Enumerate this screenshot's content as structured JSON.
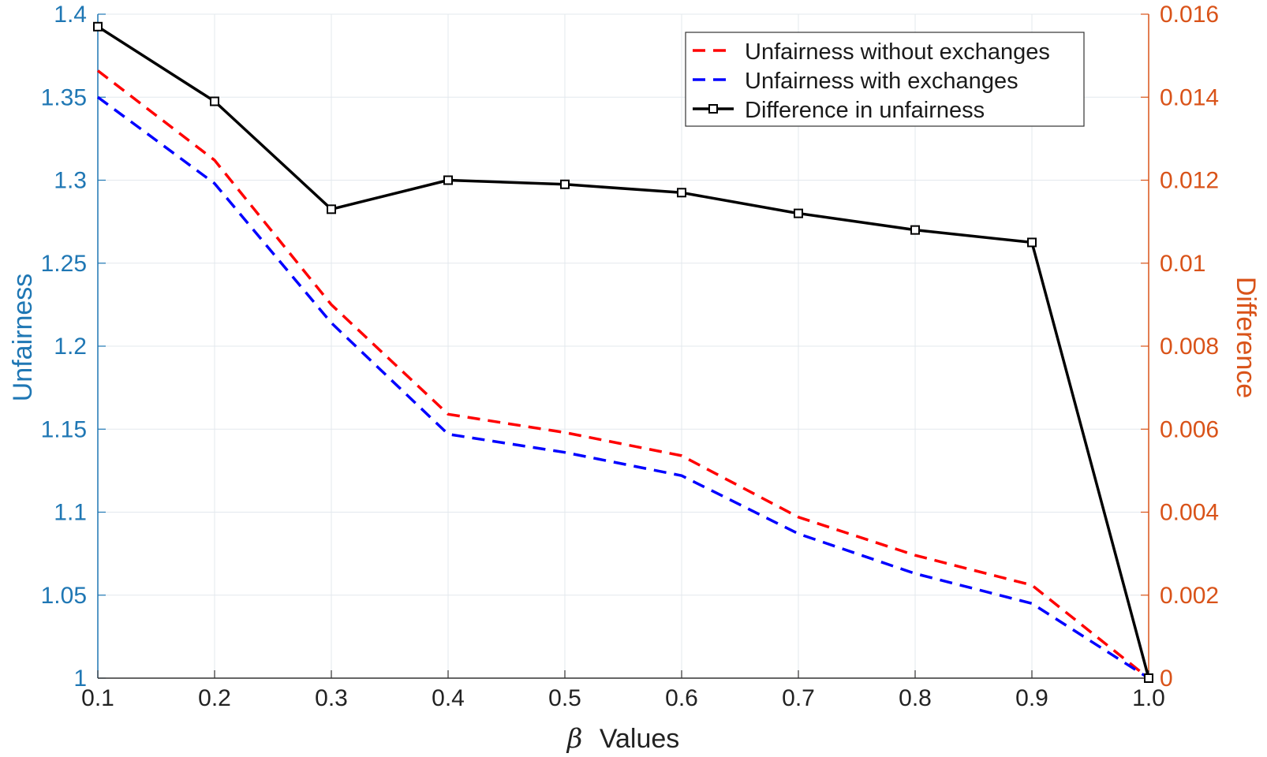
{
  "chart_data": {
    "type": "line",
    "title": "",
    "xlabel": {
      "symbol": "β",
      "text": "Values"
    },
    "ylabel_left": "Unfairness",
    "ylabel_right": "Difference",
    "x": [
      0.1,
      0.2,
      0.3,
      0.4,
      0.5,
      0.6,
      0.7,
      0.8,
      0.9,
      1.0
    ],
    "x_tick_labels": [
      "0.1",
      "0.2",
      "0.3",
      "0.4",
      "0.5",
      "0.6",
      "0.7",
      "0.8",
      "0.9",
      "1.0"
    ],
    "ylim_left": [
      1,
      1.4
    ],
    "y_left_ticks": [
      1,
      1.05,
      1.1,
      1.15,
      1.2,
      1.25,
      1.3,
      1.35,
      1.4
    ],
    "y_left_tick_labels": [
      "1",
      "1.05",
      "1.1",
      "1.15",
      "1.2",
      "1.25",
      "1.3",
      "1.35",
      "1.4"
    ],
    "ylim_right": [
      0,
      0.016
    ],
    "y_right_ticks": [
      0,
      0.002,
      0.004,
      0.006,
      0.008,
      0.01,
      0.012,
      0.014,
      0.016
    ],
    "y_right_tick_labels": [
      "0",
      "0.002",
      "0.004",
      "0.006",
      "0.008",
      "0.01",
      "0.012",
      "0.014",
      "0.016"
    ],
    "grid": true,
    "legend_position": "top-right",
    "series": [
      {
        "name": "Unfairness without exchanges",
        "axis": "left",
        "style": "dashed",
        "color": "#ff0000",
        "values": [
          1.366,
          1.312,
          1.225,
          1.159,
          1.148,
          1.134,
          1.097,
          1.074,
          1.056,
          1.0
        ]
      },
      {
        "name": "Unfairness with exchanges",
        "axis": "left",
        "style": "dashed",
        "color": "#0000ff",
        "values": [
          1.35,
          1.298,
          1.214,
          1.147,
          1.136,
          1.122,
          1.087,
          1.063,
          1.045,
          1.0
        ]
      },
      {
        "name": "Difference in unfairness",
        "axis": "right",
        "style": "solid-square",
        "color": "#000000",
        "values": [
          0.0157,
          0.0139,
          0.0113,
          0.012,
          0.0119,
          0.0117,
          0.0112,
          0.0108,
          0.0105,
          0.0
        ]
      }
    ],
    "colors": {
      "left_axis": "#1f77b4",
      "right_axis": "#d95319",
      "grid": "#e3e8ee"
    }
  }
}
